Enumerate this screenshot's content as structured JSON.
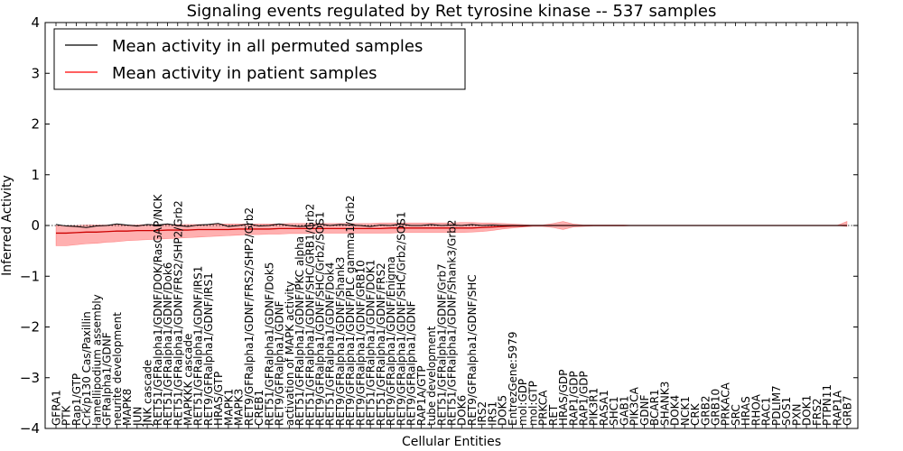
{
  "chart_data": {
    "type": "line",
    "title": "Signaling events regulated by Ret tyrosine kinase -- 537 samples",
    "xlabel": "Cellular Entities",
    "ylabel": "Inferred Activity",
    "ylim": [
      -4,
      4
    ],
    "yticks": [
      -4,
      -3,
      -2,
      -1,
      0,
      1,
      2,
      3,
      4
    ],
    "ytick_labels": [
      "−4",
      "−3",
      "−2",
      "−1",
      "0",
      "1",
      "2",
      "3",
      "4"
    ],
    "legend": {
      "placement": "top-left",
      "entries": [
        {
          "label": "Mean activity in all permuted samples",
          "color": "#000000"
        },
        {
          "label": "Mean activity in patient samples",
          "color": "#ff0000"
        }
      ]
    },
    "categories": [
      "GFRA1",
      "PTK",
      "Rap1/GTP",
      "Crk/p130 Cas/Paxillin",
      "lamellipodium assembly",
      "GFRalpha1/GDNF",
      "neurite development",
      "MAPK8",
      "JUN",
      "JNK cascade",
      "RET51/GFRalpha1/GDNF/DOK/RasGAP/NCK",
      "RET51/GFRalpha1/GDNF/Dok6",
      "RET51/GFRalpha1/GDNF/FRS2/SHP2/Grb2",
      "MAPKKK cascade",
      "RET51/GFRalpha1/GDNF/IRS1",
      "RET9/GFRalpha1/GDNF/IRS1",
      "HRAS/GTP",
      "MAPK1",
      "MAPK3",
      "RET9/GFRalpha1/GDNF/FRS2/SHP2/Grb2",
      "CREB1",
      "RET51/GFRalpha1/GDNF/Dok5",
      "RET9/GFRalpha1/GDNF",
      "activation of MAPK activity",
      "RET51/GFRalpha1/GDNF/PKC alpha",
      "RET51/GFRalpha1/GDNF/SHC/GRB1/Grb2",
      "RET9/GFRalpha1/GDNF/SHC/Grb2/SOS1",
      "RET51/GFRalpha1/GDNF/Dok4",
      "RET9/GFRalpha1/GDNF/Shank3",
      "RET9/GFRalpha1/GDNF/PLC gamma1/Grb2",
      "RET9/GFRalpha1/GDNF/GRB10",
      "RET51/GFRalpha1/GDNF/DOK1",
      "RET51/GFRalpha1/GDNF/FRS2",
      "RET9/GFRalpha1/GDNF/Enigma",
      "RET9/GFRalpha1/GDNF/SHC/Grb2/SOS1",
      "RET9/GFRalpha1/GDNF",
      "RAP1A/GTP",
      "tube development",
      "RET51/GFRalpha1/GDNF/Grb7",
      "RET51/GFRalpha1/GDNF/Shank3/Grb2",
      "DOK6",
      "RET9/GFRalpha1/GDNF/SHC",
      "IRS2",
      "IRS1",
      "DOK5",
      "EntrezGene:5979",
      "mol:GDP",
      "mol:GTP",
      "PRKCA",
      "RET",
      "HRAS/GDP",
      "RAP1/GDP",
      "RAP1/GDP",
      "PIK3R1",
      "RASA1",
      "SHC1",
      "GAB1",
      "PIK3CA",
      "GDNF",
      "BCAR1",
      "SHANK3",
      "DOK4",
      "NCK1",
      "CRK",
      "GRB2",
      "GRB10",
      "PRKACA",
      "SRC",
      "HRAS",
      "RHOA",
      "RAC1",
      "PDLIM7",
      "SOS1",
      "PXN",
      "DOK1",
      "FRS2",
      "PTPN11",
      "RAP1A",
      "GRB7"
    ],
    "series": [
      {
        "name": "Mean activity in all permuted samples",
        "color": "#000000",
        "values": [
          0.02,
          -0.01,
          -0.02,
          -0.04,
          -0.01,
          0.0,
          0.03,
          0.01,
          -0.01,
          0.02,
          0.01,
          0.03,
          0.0,
          -0.02,
          0.01,
          0.02,
          0.04,
          -0.02,
          0.0,
          0.03,
          -0.01,
          0.0,
          0.03,
          0.0,
          -0.02,
          -0.01,
          0.03,
          0.0,
          0.02,
          0.01,
          0.0,
          -0.02,
          0.01,
          0.0,
          0.03,
          0.0,
          0.0,
          0.02,
          0.0,
          0.01,
          0.0,
          0.02,
          0.0,
          0.01,
          0.0,
          0.0,
          0.0,
          0.0,
          0.0,
          0.0,
          0.0,
          0.0,
          0.0,
          0.0,
          0.0,
          0.0,
          0.0,
          0.0,
          0.0,
          0.0,
          0.0,
          0.0,
          0.0,
          0.0,
          0.0,
          0.0,
          0.0,
          0.0,
          0.0,
          0.0,
          0.0,
          0.0,
          0.0,
          0.0,
          0.0,
          0.0,
          0.0,
          0.0,
          0.0
        ]
      },
      {
        "name": "Mean activity in patient samples",
        "color": "#cc0000",
        "band_color": "#ff7070",
        "values": [
          -0.15,
          -0.15,
          -0.14,
          -0.13,
          -0.13,
          -0.12,
          -0.11,
          -0.11,
          -0.1,
          -0.1,
          -0.1,
          -0.09,
          -0.09,
          -0.09,
          -0.08,
          -0.08,
          -0.08,
          -0.08,
          -0.07,
          -0.07,
          -0.07,
          -0.07,
          -0.06,
          -0.06,
          -0.06,
          -0.06,
          -0.06,
          -0.06,
          -0.06,
          -0.06,
          -0.06,
          -0.06,
          -0.06,
          -0.05,
          -0.05,
          -0.05,
          -0.05,
          -0.05,
          -0.05,
          -0.05,
          -0.05,
          -0.05,
          -0.04,
          -0.03,
          -0.02,
          -0.01,
          -0.01,
          0.0,
          0.0,
          0.0,
          0.0,
          0.0,
          0.0,
          0.0,
          0.0,
          0.0,
          0.0,
          0.0,
          0.0,
          0.0,
          0.0,
          0.0,
          0.0,
          0.0,
          0.0,
          0.0,
          0.0,
          0.0,
          0.0,
          0.0,
          0.0,
          0.0,
          0.0,
          0.0,
          0.0,
          0.0,
          0.0,
          0.0,
          0.0
        ],
        "upper": [
          0.0,
          0.0,
          0.0,
          0.01,
          0.01,
          0.01,
          0.01,
          0.01,
          0.01,
          0.02,
          0.02,
          0.02,
          0.02,
          0.02,
          0.02,
          0.02,
          0.03,
          0.03,
          0.03,
          0.03,
          0.03,
          0.03,
          0.03,
          0.04,
          0.04,
          0.04,
          0.04,
          0.04,
          0.04,
          0.04,
          0.04,
          0.04,
          0.05,
          0.05,
          0.05,
          0.05,
          0.05,
          0.05,
          0.05,
          0.05,
          0.06,
          0.06,
          0.05,
          0.05,
          0.04,
          0.03,
          0.02,
          0.01,
          0.01,
          0.04,
          0.08,
          0.03,
          0.01,
          0.01,
          0.01,
          0.01,
          0.01,
          0.0,
          0.0,
          0.0,
          0.0,
          0.0,
          0.0,
          0.0,
          0.0,
          0.0,
          0.0,
          0.0,
          0.0,
          0.0,
          0.0,
          0.0,
          0.0,
          0.0,
          0.0,
          0.0,
          0.0,
          0.0,
          0.08
        ],
        "lower": [
          -0.4,
          -0.4,
          -0.38,
          -0.36,
          -0.35,
          -0.33,
          -0.32,
          -0.3,
          -0.29,
          -0.28,
          -0.27,
          -0.26,
          -0.25,
          -0.24,
          -0.23,
          -0.22,
          -0.21,
          -0.2,
          -0.19,
          -0.18,
          -0.18,
          -0.17,
          -0.17,
          -0.16,
          -0.16,
          -0.16,
          -0.15,
          -0.15,
          -0.15,
          -0.15,
          -0.15,
          -0.15,
          -0.15,
          -0.15,
          -0.14,
          -0.14,
          -0.14,
          -0.14,
          -0.14,
          -0.14,
          -0.14,
          -0.13,
          -0.12,
          -0.1,
          -0.07,
          -0.05,
          -0.03,
          -0.02,
          -0.02,
          -0.04,
          -0.08,
          -0.03,
          -0.02,
          -0.01,
          -0.01,
          -0.01,
          -0.01,
          0.0,
          0.0,
          0.0,
          0.0,
          0.0,
          0.0,
          0.0,
          0.0,
          0.0,
          0.0,
          0.0,
          0.0,
          0.0,
          0.0,
          0.0,
          0.0,
          0.0,
          0.0,
          0.0,
          0.0,
          0.0,
          -0.02
        ]
      }
    ],
    "grid": false,
    "zero_line": "dotted"
  }
}
